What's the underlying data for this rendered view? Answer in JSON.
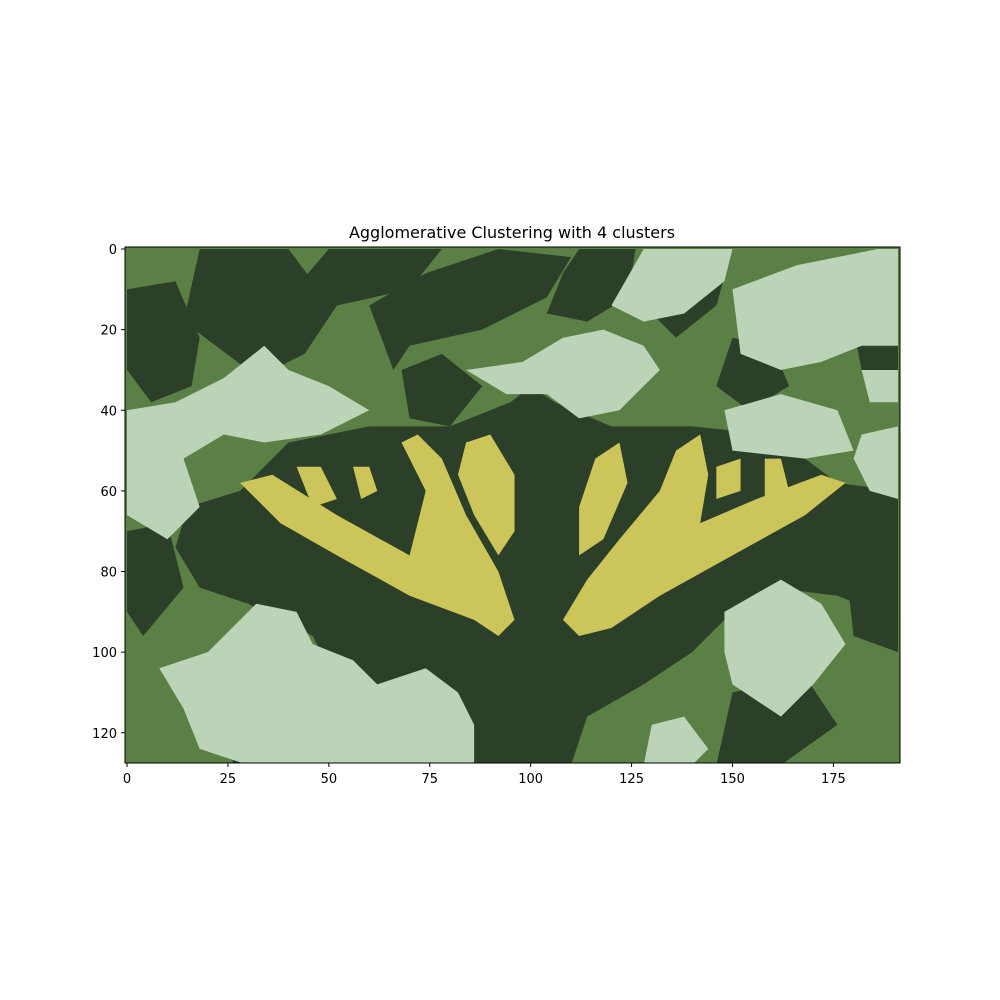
{
  "chart_data": {
    "type": "heatmap",
    "title": "Agglomerative Clustering with 4 clusters",
    "xlabel": "",
    "ylabel": "",
    "image_size": [
      192,
      128
    ],
    "xlim": [
      -0.5,
      191.5
    ],
    "ylim": [
      127.5,
      -0.5
    ],
    "x_ticks": [
      0,
      25,
      50,
      75,
      100,
      125,
      150,
      175
    ],
    "y_ticks": [
      0,
      20,
      40,
      60,
      80,
      100,
      120
    ],
    "grid": false,
    "clusters": [
      {
        "id": 0,
        "color": "#2c3f29"
      },
      {
        "id": 1,
        "color": "#5b8046"
      },
      {
        "id": 2,
        "color": "#bbd3b7"
      },
      {
        "id": 3,
        "color": "#cbc55a"
      }
    ]
  }
}
